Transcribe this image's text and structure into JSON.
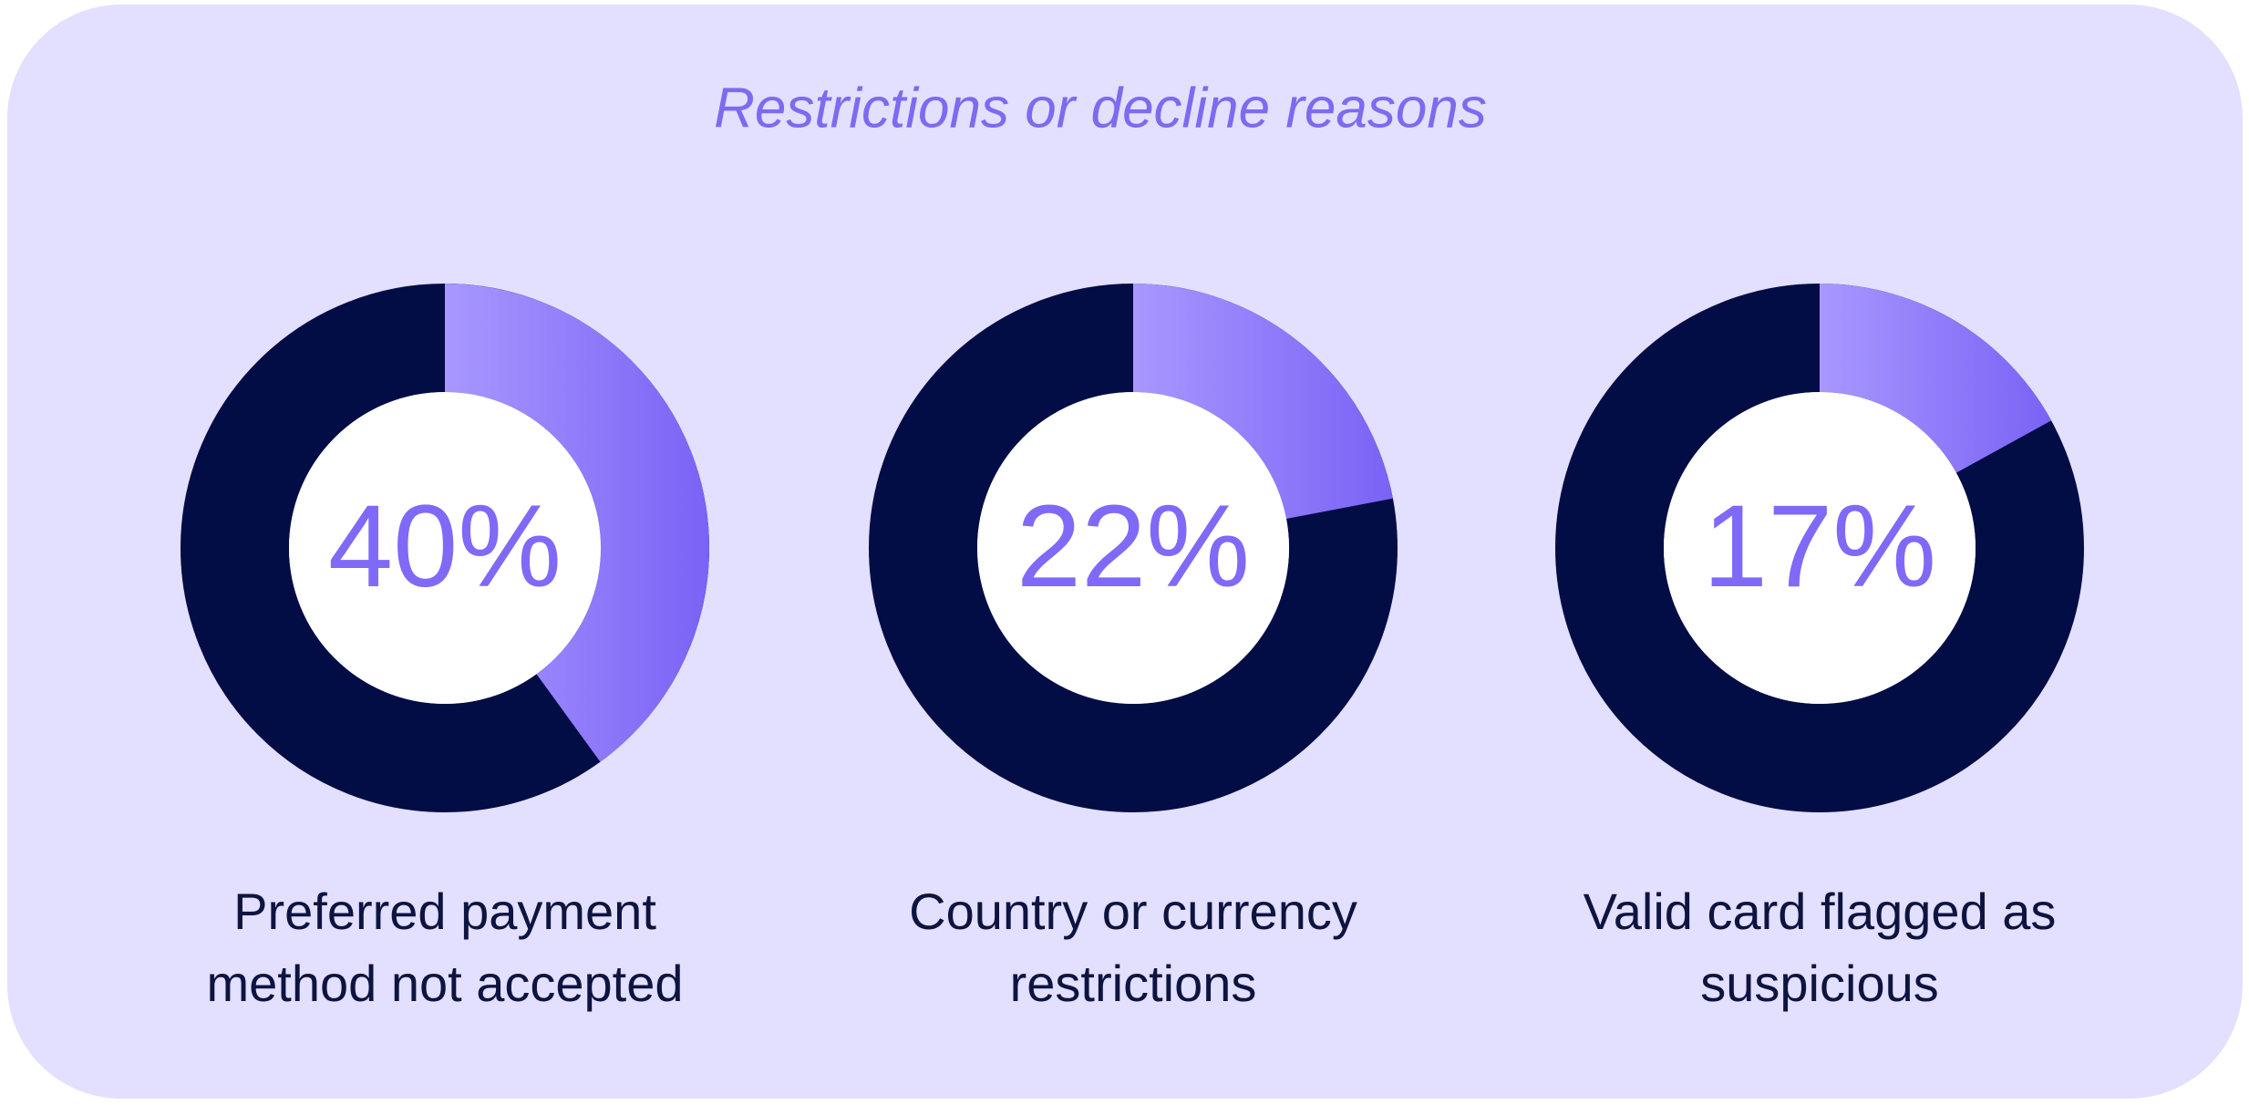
{
  "title": "Restrictions or decline reasons",
  "chart_data": [
    {
      "type": "donut",
      "label": "Preferred payment method not accepted",
      "values": [
        40
      ],
      "value_labels": [
        "40%"
      ],
      "color": "#7f6af7",
      "track_color": "#020d45"
    },
    {
      "type": "donut",
      "label": "Country or currency restrictions",
      "values": [
        22
      ],
      "value_labels": [
        "22%"
      ],
      "color": "#7f6af7",
      "track_color": "#020d45"
    },
    {
      "type": "donut",
      "label": "Valid card flagged as suspicious",
      "values": [
        17
      ],
      "value_labels": [
        "17%"
      ],
      "color": "#7f6af7",
      "track_color": "#020d45"
    }
  ]
}
